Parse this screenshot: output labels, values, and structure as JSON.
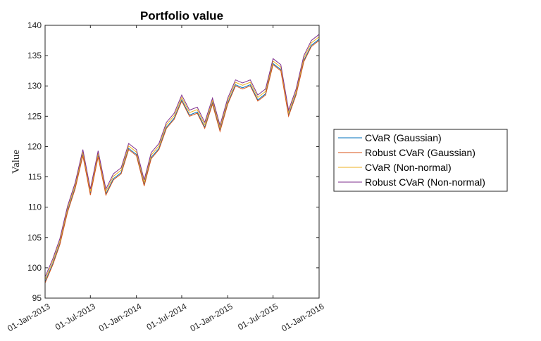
{
  "chart_data": {
    "type": "line",
    "title": "Portfolio value",
    "ylabel": "Value",
    "x": [
      "2013-01-01",
      "2013-02-01",
      "2013-03-01",
      "2013-04-01",
      "2013-05-01",
      "2013-06-01",
      "2013-07-01",
      "2013-08-01",
      "2013-09-01",
      "2013-10-01",
      "2013-11-01",
      "2013-12-01",
      "2014-01-01",
      "2014-02-01",
      "2014-03-01",
      "2014-04-01",
      "2014-05-01",
      "2014-06-01",
      "2014-07-01",
      "2014-08-01",
      "2014-09-01",
      "2014-10-01",
      "2014-11-01",
      "2014-12-01",
      "2015-01-01",
      "2015-02-01",
      "2015-03-01",
      "2015-04-01",
      "2015-05-01",
      "2015-06-01",
      "2015-07-01",
      "2015-08-01",
      "2015-09-01",
      "2015-10-01",
      "2015-11-01",
      "2015-12-01",
      "2016-01-01"
    ],
    "series": [
      {
        "name": "CVaR (Gaussian)",
        "color": "#0072bd",
        "values": [
          97.7,
          100.7,
          104,
          109.4,
          113.2,
          118.7,
          112.2,
          118.5,
          112.2,
          114.7,
          115.7,
          119.7,
          118.7,
          113.7,
          118.2,
          119.7,
          123.2,
          124.7,
          127.7,
          125.2,
          125.7,
          123.2,
          127.2,
          122.7,
          127.2,
          130.2,
          129.7,
          130.2,
          127.7,
          128.7,
          133.7,
          132.7,
          125.2,
          128.7,
          134.2,
          136.7,
          137.7
        ]
      },
      {
        "name": "Robust CVaR (Gaussian)",
        "color": "#d95319",
        "values": [
          97.5,
          100.5,
          103.8,
          109.2,
          113,
          118.5,
          112,
          118.3,
          112,
          114.5,
          115.5,
          119.5,
          118.5,
          113.5,
          118,
          119.5,
          123,
          124.5,
          127.5,
          125,
          125.5,
          123,
          127,
          122.5,
          127,
          130,
          129.5,
          130,
          127.5,
          128.5,
          133.5,
          132.5,
          125,
          128.5,
          134,
          136.5,
          137.5
        ]
      },
      {
        "name": "CVaR (Non-normal)",
        "color": "#edb120",
        "values": [
          98.1,
          101.1,
          104.4,
          109.8,
          113.6,
          119.1,
          112.6,
          118.9,
          112.6,
          115.1,
          116.1,
          120.1,
          119.1,
          114.1,
          118.6,
          120.1,
          123.6,
          125.1,
          128.1,
          125.6,
          126.1,
          123.6,
          127.6,
          123.1,
          127.6,
          130.6,
          130.1,
          130.6,
          128.1,
          129.1,
          134.1,
          133.1,
          125.6,
          129.1,
          134.6,
          137.1,
          138.1
        ]
      },
      {
        "name": "Robust CVaR (Non-normal)",
        "color": "#7e2f8e",
        "values": [
          98.5,
          101.5,
          104.8,
          110.2,
          114,
          119.5,
          113,
          119.3,
          113,
          115.5,
          116.5,
          120.5,
          119.5,
          114.5,
          119,
          120.5,
          124,
          125.5,
          128.5,
          126,
          126.5,
          124,
          128,
          123.5,
          128,
          131,
          130.5,
          131,
          128.5,
          129.5,
          134.5,
          133.5,
          126,
          129.5,
          135,
          137.5,
          138.5
        ]
      }
    ],
    "xlim": [
      "2013-01-01",
      "2016-01-01"
    ],
    "xticks": [
      {
        "value": "2013-01-01",
        "label": "01-Jan-2013"
      },
      {
        "value": "2013-07-01",
        "label": "01-Jul-2013"
      },
      {
        "value": "2014-01-01",
        "label": "01-Jan-2014"
      },
      {
        "value": "2014-07-01",
        "label": "01-Jul-2014"
      },
      {
        "value": "2015-01-01",
        "label": "01-Jan-2015"
      },
      {
        "value": "2015-07-01",
        "label": "01-Jul-2015"
      },
      {
        "value": "2016-01-01",
        "label": "01-Jan-2016"
      }
    ],
    "ylim": [
      95,
      140
    ],
    "yticks": [
      95,
      100,
      105,
      110,
      115,
      120,
      125,
      130,
      135,
      140
    ],
    "legend": "right"
  }
}
